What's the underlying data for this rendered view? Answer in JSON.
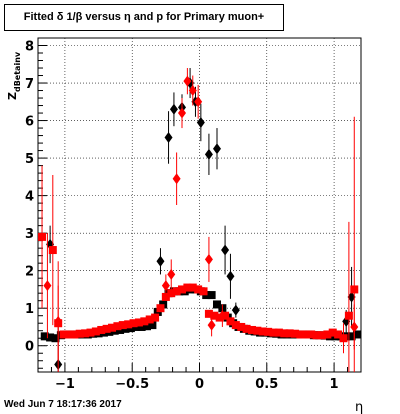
{
  "title": "Fitted δ 1/β versus η and p for Primary muon+",
  "timestamp": "Wed Jun  7 18:17:36 2017",
  "chart_data": {
    "type": "scatter",
    "title": "Fitted δ 1/β versus η and p for Primary muon+",
    "xlabel": "η",
    "ylabel": "Z",
    "ylabel_subscript": "dBetainv",
    "xlim": [
      -1.2,
      1.2
    ],
    "ylim": [
      -0.7,
      8.2
    ],
    "grid": true,
    "x_ticks": [
      -1,
      -0.5,
      0,
      0.5,
      1
    ],
    "x_tick_labels": [
      "−1",
      "−0.5",
      "0",
      "0.5",
      "1"
    ],
    "y_ticks": [
      0,
      1,
      2,
      3,
      4,
      5,
      6,
      7,
      8
    ],
    "y_tick_labels": [
      "0",
      "1",
      "2",
      "3",
      "4",
      "5",
      "6",
      "7",
      "8"
    ],
    "series": [
      {
        "marker": "diamond",
        "color": "#000000",
        "points": [
          {
            "x": -1.11,
            "y": 2.7,
            "err": 0.5
          },
          {
            "x": -1.05,
            "y": -0.5,
            "err": 1.0
          },
          {
            "x": -0.29,
            "y": 2.25,
            "err": 0.35
          },
          {
            "x": -0.23,
            "y": 5.55,
            "err": 0.7
          },
          {
            "x": -0.19,
            "y": 6.3,
            "err": 0.45
          },
          {
            "x": -0.13,
            "y": 6.35,
            "err": 0.35
          },
          {
            "x": -0.07,
            "y": 7.0,
            "err": 0.4
          },
          {
            "x": -0.03,
            "y": 6.5,
            "err": 0.4
          },
          {
            "x": 0.01,
            "y": 5.95,
            "err": 0.5
          },
          {
            "x": 0.07,
            "y": 5.1,
            "err": 0.55
          },
          {
            "x": 0.13,
            "y": 5.25,
            "err": 0.55
          },
          {
            "x": 0.19,
            "y": 2.55,
            "err": 0.65
          },
          {
            "x": 0.23,
            "y": 1.85,
            "err": 0.6
          },
          {
            "x": 0.27,
            "y": 0.95,
            "err": 0.2
          },
          {
            "x": 1.09,
            "y": 0.65,
            "err": 0.3
          },
          {
            "x": 1.13,
            "y": 1.3,
            "err": 0.8
          }
        ]
      },
      {
        "marker": "square",
        "color": "#000000",
        "points": [
          {
            "x": -1.15,
            "y": 0.25
          },
          {
            "x": -1.11,
            "y": 0.22
          },
          {
            "x": -1.07,
            "y": 0.2
          },
          {
            "x": -1.03,
            "y": 0.28
          },
          {
            "x": -0.99,
            "y": 0.3
          },
          {
            "x": -0.95,
            "y": 0.3
          },
          {
            "x": -0.91,
            "y": 0.3
          },
          {
            "x": -0.87,
            "y": 0.3
          },
          {
            "x": -0.83,
            "y": 0.3
          },
          {
            "x": -0.79,
            "y": 0.32
          },
          {
            "x": -0.75,
            "y": 0.33
          },
          {
            "x": -0.71,
            "y": 0.35
          },
          {
            "x": -0.67,
            "y": 0.37
          },
          {
            "x": -0.63,
            "y": 0.4
          },
          {
            "x": -0.59,
            "y": 0.42
          },
          {
            "x": -0.55,
            "y": 0.45
          },
          {
            "x": -0.51,
            "y": 0.47
          },
          {
            "x": -0.47,
            "y": 0.5
          },
          {
            "x": -0.43,
            "y": 0.5
          },
          {
            "x": -0.39,
            "y": 0.52
          },
          {
            "x": -0.35,
            "y": 0.55
          },
          {
            "x": -0.31,
            "y": 0.9
          },
          {
            "x": -0.27,
            "y": 1.1
          },
          {
            "x": -0.23,
            "y": 1.4
          },
          {
            "x": -0.19,
            "y": 1.45
          },
          {
            "x": -0.15,
            "y": 1.45
          },
          {
            "x": -0.11,
            "y": 1.45
          },
          {
            "x": -0.07,
            "y": 1.5
          },
          {
            "x": -0.03,
            "y": 1.5
          },
          {
            "x": 0.01,
            "y": 1.45
          },
          {
            "x": 0.05,
            "y": 1.35
          },
          {
            "x": 0.09,
            "y": 1.35
          },
          {
            "x": 0.13,
            "y": 1.1
          },
          {
            "x": 0.17,
            "y": 1.0
          },
          {
            "x": 0.21,
            "y": 0.75
          },
          {
            "x": 0.25,
            "y": 0.6
          },
          {
            "x": 0.29,
            "y": 0.5
          },
          {
            "x": 0.33,
            "y": 0.45
          },
          {
            "x": 0.37,
            "y": 0.4
          },
          {
            "x": 0.41,
            "y": 0.38
          },
          {
            "x": 0.45,
            "y": 0.35
          },
          {
            "x": 0.49,
            "y": 0.35
          },
          {
            "x": 0.53,
            "y": 0.33
          },
          {
            "x": 0.57,
            "y": 0.32
          },
          {
            "x": 0.61,
            "y": 0.3
          },
          {
            "x": 0.65,
            "y": 0.3
          },
          {
            "x": 0.69,
            "y": 0.3
          },
          {
            "x": 0.73,
            "y": 0.3
          },
          {
            "x": 0.77,
            "y": 0.3
          },
          {
            "x": 0.81,
            "y": 0.3
          },
          {
            "x": 0.85,
            "y": 0.28
          },
          {
            "x": 0.89,
            "y": 0.28
          },
          {
            "x": 0.93,
            "y": 0.27
          },
          {
            "x": 0.97,
            "y": 0.25
          },
          {
            "x": 1.01,
            "y": 0.25
          },
          {
            "x": 1.05,
            "y": 0.25
          },
          {
            "x": 1.09,
            "y": 0.25
          },
          {
            "x": 1.13,
            "y": 0.25
          },
          {
            "x": 1.17,
            "y": 0.3
          }
        ]
      },
      {
        "marker": "diamond",
        "color": "#ff0000",
        "points": [
          {
            "x": -1.13,
            "y": 1.6,
            "err": 1.4
          },
          {
            "x": -1.05,
            "y": 0.65,
            "err": 1.6
          },
          {
            "x": -0.25,
            "y": 1.6,
            "err": 0.3
          },
          {
            "x": -0.21,
            "y": 1.9,
            "err": 0.4
          },
          {
            "x": -0.17,
            "y": 4.45,
            "err": 0.7
          },
          {
            "x": -0.13,
            "y": 6.2,
            "err": 0.4
          },
          {
            "x": -0.09,
            "y": 7.05,
            "err": 0.35
          },
          {
            "x": -0.05,
            "y": 6.8,
            "err": 0.4
          },
          {
            "x": -0.01,
            "y": 6.5,
            "err": 0.45
          },
          {
            "x": 0.07,
            "y": 2.3,
            "err": 0.6
          },
          {
            "x": 0.09,
            "y": 0.55,
            "err": 0.3
          },
          {
            "x": 0.17,
            "y": 0.8,
            "err": 0.3
          },
          {
            "x": 1.15,
            "y": 0.5,
            "err": 0.6
          }
        ]
      },
      {
        "marker": "square",
        "color": "#ff0000",
        "points": [
          {
            "x": -1.17,
            "y": 2.9,
            "err": 1.9
          },
          {
            "x": -1.09,
            "y": 2.55,
            "err": 2.0
          },
          {
            "x": -1.05,
            "y": 0.6,
            "err": 1.0
          },
          {
            "x": -1.01,
            "y": 0.3,
            "err": 0.1
          },
          {
            "x": -0.97,
            "y": 0.3
          },
          {
            "x": -0.93,
            "y": 0.3
          },
          {
            "x": -0.89,
            "y": 0.32
          },
          {
            "x": -0.85,
            "y": 0.33
          },
          {
            "x": -0.81,
            "y": 0.35
          },
          {
            "x": -0.77,
            "y": 0.38
          },
          {
            "x": -0.73,
            "y": 0.42
          },
          {
            "x": -0.69,
            "y": 0.45
          },
          {
            "x": -0.65,
            "y": 0.48
          },
          {
            "x": -0.61,
            "y": 0.52
          },
          {
            "x": -0.57,
            "y": 0.55
          },
          {
            "x": -0.53,
            "y": 0.57
          },
          {
            "x": -0.49,
            "y": 0.6
          },
          {
            "x": -0.45,
            "y": 0.62
          },
          {
            "x": -0.41,
            "y": 0.65
          },
          {
            "x": -0.37,
            "y": 0.7
          },
          {
            "x": -0.33,
            "y": 0.75
          },
          {
            "x": -0.29,
            "y": 1.0
          },
          {
            "x": -0.25,
            "y": 1.3
          },
          {
            "x": -0.21,
            "y": 1.4
          },
          {
            "x": -0.17,
            "y": 1.45
          },
          {
            "x": -0.13,
            "y": 1.5
          },
          {
            "x": -0.09,
            "y": 1.55
          },
          {
            "x": -0.05,
            "y": 1.55
          },
          {
            "x": -0.01,
            "y": 1.5
          },
          {
            "x": 0.03,
            "y": 1.45
          },
          {
            "x": 0.07,
            "y": 0.85
          },
          {
            "x": 0.11,
            "y": 0.8
          },
          {
            "x": 0.15,
            "y": 0.75
          },
          {
            "x": 0.19,
            "y": 0.8
          },
          {
            "x": 0.23,
            "y": 0.65
          },
          {
            "x": 0.27,
            "y": 0.55
          },
          {
            "x": 0.31,
            "y": 0.5
          },
          {
            "x": 0.35,
            "y": 0.45
          },
          {
            "x": 0.39,
            "y": 0.42
          },
          {
            "x": 0.43,
            "y": 0.4
          },
          {
            "x": 0.47,
            "y": 0.38
          },
          {
            "x": 0.51,
            "y": 0.37
          },
          {
            "x": 0.55,
            "y": 0.35
          },
          {
            "x": 0.59,
            "y": 0.35
          },
          {
            "x": 0.63,
            "y": 0.33
          },
          {
            "x": 0.67,
            "y": 0.33
          },
          {
            "x": 0.71,
            "y": 0.32
          },
          {
            "x": 0.75,
            "y": 0.3
          },
          {
            "x": 0.79,
            "y": 0.3
          },
          {
            "x": 0.83,
            "y": 0.3
          },
          {
            "x": 0.87,
            "y": 0.28
          },
          {
            "x": 0.91,
            "y": 0.28
          },
          {
            "x": 0.95,
            "y": 0.3
          },
          {
            "x": 0.99,
            "y": 0.35
          },
          {
            "x": 1.03,
            "y": 0.3
          },
          {
            "x": 1.07,
            "y": 0.2,
            "err": 0.4
          },
          {
            "x": 1.11,
            "y": 0.8,
            "err": 2.5
          },
          {
            "x": 1.15,
            "y": 1.5,
            "err": 4.6
          }
        ]
      }
    ]
  }
}
